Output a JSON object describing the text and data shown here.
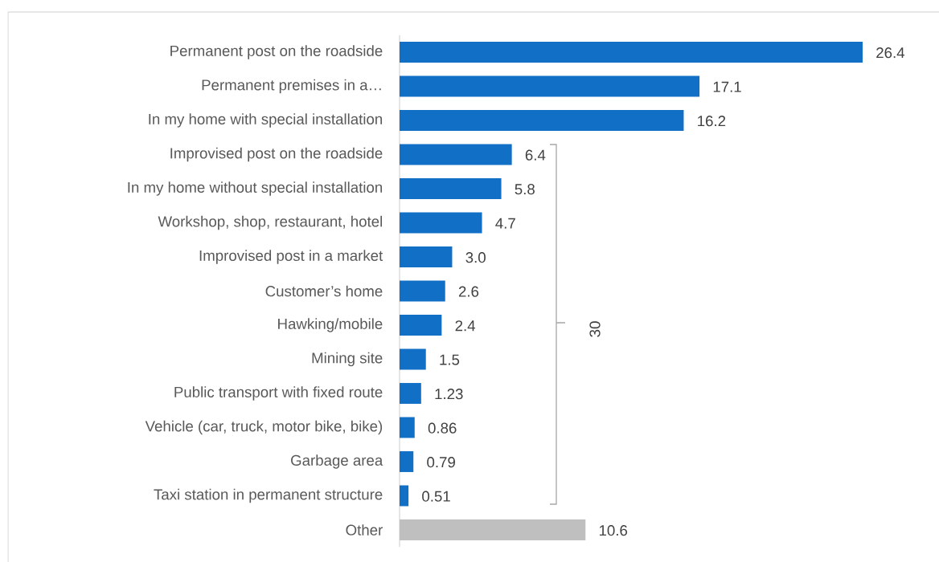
{
  "chart_data": {
    "type": "bar",
    "orientation": "horizontal",
    "categories": [
      "Permanent post on the roadside",
      "Permanent premises in a…",
      "In my home with special installation",
      "Improvised post on the roadside",
      "In my home without special installation",
      "Workshop, shop, restaurant, hotel",
      "Improvised post in a market",
      "Customer’s home",
      "Hawking/mobile",
      "Mining site",
      "Public transport with fixed route",
      "Vehicle (car, truck, motor bike, bike)",
      "Garbage area",
      "Taxi station in permanent structure",
      "Other"
    ],
    "values": [
      26.4,
      17.1,
      16.2,
      6.4,
      5.8,
      4.7,
      3.0,
      2.6,
      2.4,
      1.5,
      1.23,
      0.86,
      0.79,
      0.51,
      10.6
    ],
    "colors": [
      "#1170c6",
      "#1170c6",
      "#1170c6",
      "#1170c6",
      "#1170c6",
      "#1170c6",
      "#1170c6",
      "#1170c6",
      "#1170c6",
      "#1170c6",
      "#1170c6",
      "#1170c6",
      "#1170c6",
      "#1170c6",
      "#bfbfbf"
    ],
    "value_labels": [
      "26.4",
      "17.1",
      "16.2",
      "6.4",
      "5.8",
      "4.7",
      "3.0",
      "2.6",
      "2.4",
      "1.5",
      "1.23",
      "0.86",
      "0.79",
      "0.51",
      "10.6"
    ],
    "tick_labels": "y",
    "annotations": [
      "30"
    ]
  }
}
